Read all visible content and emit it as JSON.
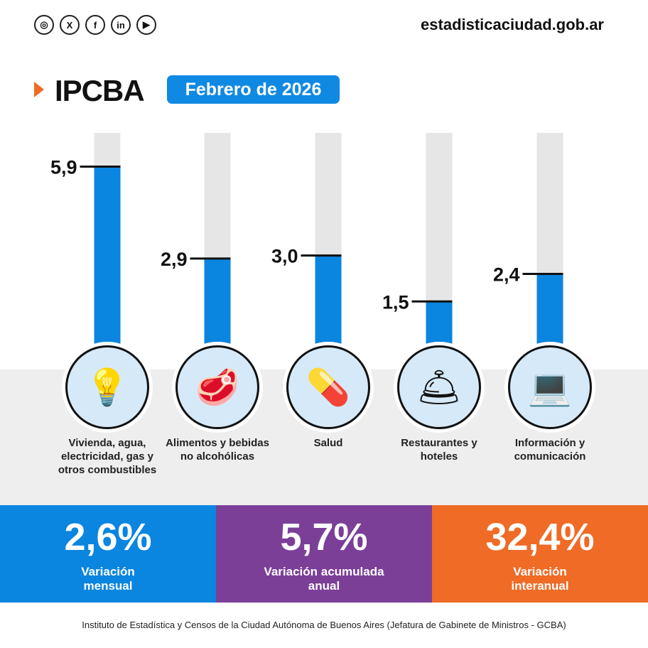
{
  "header": {
    "social_icons": [
      "instagram-icon",
      "x-icon",
      "facebook-icon",
      "linkedin-icon",
      "youtube-icon"
    ],
    "site": "estadisticaciudad.gob.ar",
    "title": "IPCBA",
    "period": "Febrero de 2026"
  },
  "colors": {
    "bar": "#0a85e0",
    "track": "#e6e6e6",
    "accent": "#ef6b26",
    "purple": "#7b3f98"
  },
  "chart_data": {
    "type": "bar",
    "categories": [
      "Vivienda, agua, electricidad, gas y otros combustibles",
      "Alimentos y bebidas no alcohólicas",
      "Salud",
      "Restaurantes y hoteles",
      "Información y comunicación"
    ],
    "values": [
      5.9,
      2.9,
      3.0,
      1.5,
      2.4
    ],
    "value_labels": [
      "5,9",
      "2,9",
      "3,0",
      "1,5",
      "2,4"
    ],
    "icons": [
      "lightbulb-icon",
      "meat-icon",
      "pill-icon",
      "service-bell-icon",
      "laptop-icon"
    ],
    "ylim": [
      0,
      7
    ],
    "grid": false
  },
  "stats": [
    {
      "value": "2,6%",
      "label": "Variación\nmensual",
      "color": "#0a85e0"
    },
    {
      "value": "5,7%",
      "label": "Variación acumulada\nanual",
      "color": "#7b3f98"
    },
    {
      "value": "32,4%",
      "label": "Variación\ninteranual",
      "color": "#ef6b26"
    }
  ],
  "footer": "Instituto de Estadística y Censos de la Ciudad Autónoma de Buenos Aires (Jefatura de Gabinete de Ministros - GCBA)"
}
